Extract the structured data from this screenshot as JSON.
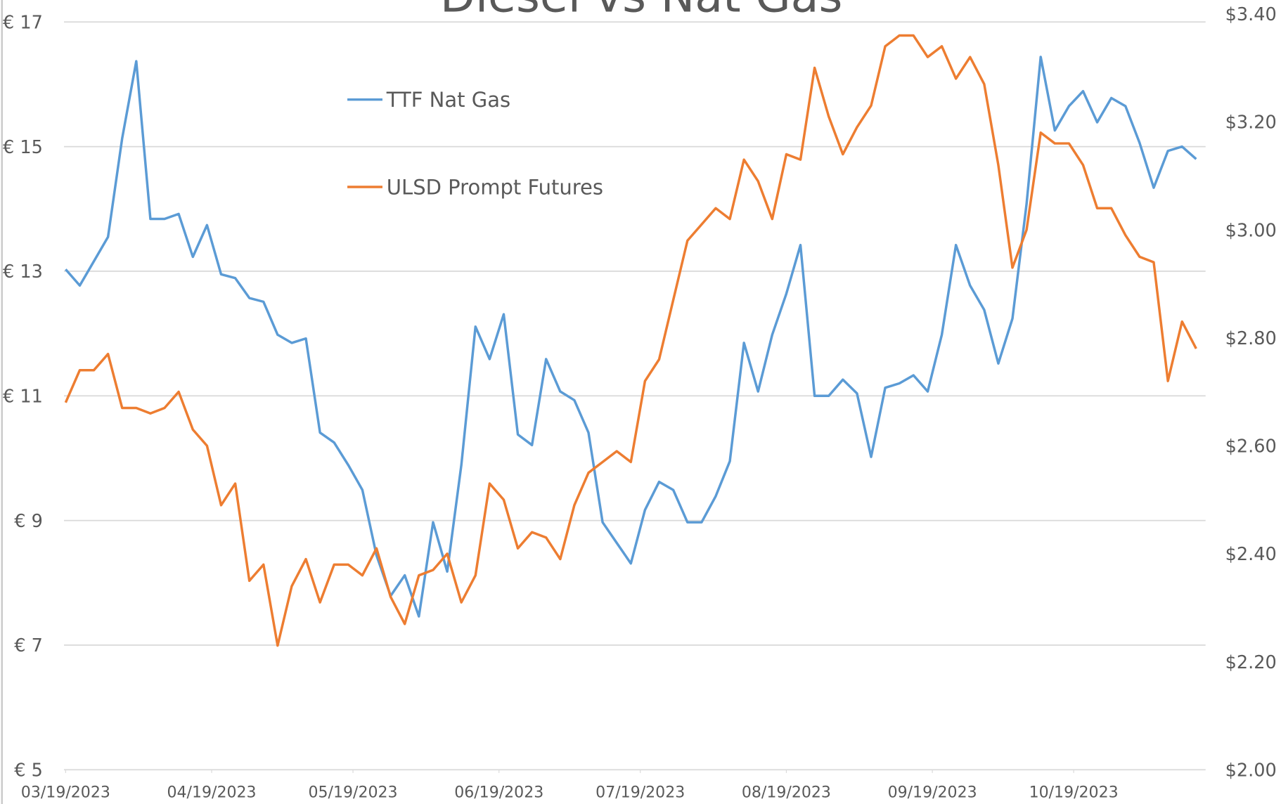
{
  "chart_data": {
    "type": "line",
    "title": "Diesel vs Nat Gas",
    "x": [
      "2023-03-19",
      "2023-03-22",
      "2023-03-25",
      "2023-03-28",
      "2023-03-31",
      "2023-04-03",
      "2023-04-06",
      "2023-04-09",
      "2023-04-12",
      "2023-04-15",
      "2023-04-18",
      "2023-04-21",
      "2023-04-24",
      "2023-04-27",
      "2023-04-30",
      "2023-05-03",
      "2023-05-06",
      "2023-05-09",
      "2023-05-12",
      "2023-05-15",
      "2023-05-18",
      "2023-05-21",
      "2023-05-24",
      "2023-05-27",
      "2023-05-30",
      "2023-06-02",
      "2023-06-05",
      "2023-06-08",
      "2023-06-11",
      "2023-06-14",
      "2023-06-17",
      "2023-06-20",
      "2023-06-23",
      "2023-06-26",
      "2023-06-29",
      "2023-07-02",
      "2023-07-05",
      "2023-07-08",
      "2023-07-11",
      "2023-07-14",
      "2023-07-17",
      "2023-07-20",
      "2023-07-23",
      "2023-07-26",
      "2023-07-29",
      "2023-08-01",
      "2023-08-04",
      "2023-08-07",
      "2023-08-10",
      "2023-08-13",
      "2023-08-16",
      "2023-08-19",
      "2023-08-22",
      "2023-08-25",
      "2023-08-28",
      "2023-08-31",
      "2023-09-03",
      "2023-09-06",
      "2023-09-09",
      "2023-09-12",
      "2023-09-15",
      "2023-09-18",
      "2023-09-21",
      "2023-09-24",
      "2023-09-27",
      "2023-09-30",
      "2023-10-03",
      "2023-10-06",
      "2023-10-09",
      "2023-10-12",
      "2023-10-15",
      "2023-10-18",
      "2023-10-21",
      "2023-10-24",
      "2023-10-27",
      "2023-10-30",
      "2023-11-02",
      "2023-11-05",
      "2023-11-08",
      "2023-11-11",
      "2023-11-14"
    ],
    "series": [
      {
        "name": "TTF Nat Gas",
        "color": "#5b9bd5",
        "axis": "y",
        "values": [
          13.03,
          12.77,
          13.16,
          13.55,
          15.13,
          16.37,
          13.84,
          13.84,
          13.92,
          13.23,
          13.74,
          12.95,
          12.89,
          12.57,
          12.51,
          11.98,
          11.85,
          11.92,
          10.41,
          10.25,
          9.89,
          9.49,
          8.44,
          7.79,
          8.12,
          7.46,
          8.97,
          8.18,
          9.89,
          12.11,
          11.59,
          12.31,
          10.38,
          10.21,
          11.59,
          11.07,
          10.93,
          10.41,
          8.97,
          8.64,
          8.31,
          9.17,
          9.62,
          9.49,
          8.97,
          8.97,
          9.39,
          9.95,
          11.85,
          11.07,
          11.98,
          12.64,
          13.42,
          11.0,
          11.0,
          11.26,
          11.04,
          10.02,
          11.13,
          11.2,
          11.33,
          11.07,
          11.98,
          13.42,
          12.77,
          12.38,
          11.52,
          12.24,
          14.08,
          16.44,
          15.26,
          15.65,
          15.89,
          15.39,
          15.78,
          15.65,
          15.06,
          14.34,
          14.93,
          15.0,
          14.8
        ]
      },
      {
        "name": "ULSD Prompt Futures",
        "color": "#ed7d31",
        "axis": "y2",
        "values": [
          2.68,
          2.74,
          2.74,
          2.77,
          2.67,
          2.67,
          2.66,
          2.67,
          2.7,
          2.63,
          2.6,
          2.49,
          2.53,
          2.35,
          2.38,
          2.23,
          2.34,
          2.39,
          2.31,
          2.38,
          2.38,
          2.36,
          2.41,
          2.32,
          2.27,
          2.36,
          2.37,
          2.4,
          2.31,
          2.36,
          2.53,
          2.5,
          2.41,
          2.44,
          2.43,
          2.39,
          2.49,
          2.55,
          2.57,
          2.59,
          2.57,
          2.72,
          2.76,
          2.87,
          2.98,
          3.01,
          3.04,
          3.02,
          3.13,
          3.09,
          3.02,
          3.14,
          3.13,
          3.3,
          3.21,
          3.14,
          3.19,
          3.23,
          3.34,
          3.36,
          3.36,
          3.32,
          3.34,
          3.28,
          3.32,
          3.27,
          3.12,
          2.93,
          3.0,
          3.18,
          3.16,
          3.16,
          3.12,
          3.04,
          3.04,
          2.99,
          2.95,
          2.94,
          2.72,
          2.83,
          2.78
        ]
      }
    ],
    "xlim": [
      "2023-03-19",
      "2023-11-16"
    ],
    "xticks": [
      {
        "value": "2023-03-19",
        "label": "03/19/2023"
      },
      {
        "value": "2023-04-19",
        "label": "04/19/2023"
      },
      {
        "value": "2023-05-19",
        "label": "05/19/2023"
      },
      {
        "value": "2023-06-19",
        "label": "06/19/2023"
      },
      {
        "value": "2023-07-19",
        "label": "07/19/2023"
      },
      {
        "value": "2023-08-19",
        "label": "08/19/2023"
      },
      {
        "value": "2023-09-19",
        "label": "09/19/2023"
      },
      {
        "value": "2023-10-19",
        "label": "10/19/2023"
      }
    ],
    "ylim": [
      5,
      17.13
    ],
    "yticks": [
      {
        "value": 5,
        "label": "€ 5"
      },
      {
        "value": 7,
        "label": "€ 7"
      },
      {
        "value": 9,
        "label": "€ 9"
      },
      {
        "value": 11,
        "label": "€ 11"
      },
      {
        "value": 13,
        "label": "€ 13"
      },
      {
        "value": 15,
        "label": "€ 15"
      },
      {
        "value": 17,
        "label": "€ 17"
      }
    ],
    "y2lim": [
      2,
      3.4
    ],
    "y2ticks": [
      {
        "value": 2,
        "label": "$2.00"
      },
      {
        "value": 2.2,
        "label": "$2.20"
      },
      {
        "value": 2.4,
        "label": "$2.40"
      },
      {
        "value": 2.6,
        "label": "$2.60"
      },
      {
        "value": 2.8,
        "label": "$2.80"
      },
      {
        "value": 3,
        "label": "$3.00"
      },
      {
        "value": 3.2,
        "label": "$3.20"
      },
      {
        "value": 3.4,
        "label": "$3.40"
      }
    ],
    "grid": true,
    "legend": "upper-left"
  }
}
